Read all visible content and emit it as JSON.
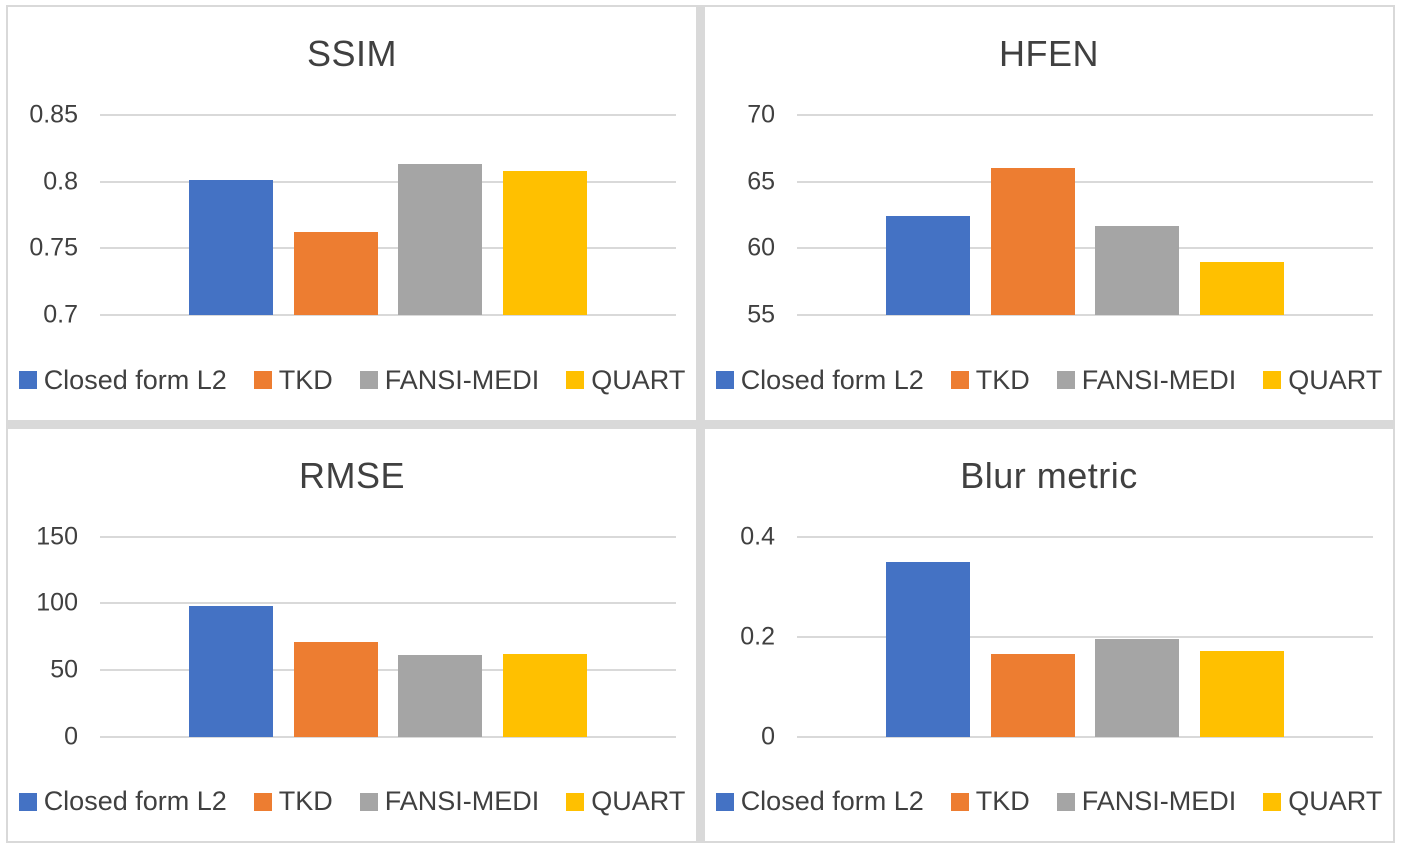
{
  "figure": {
    "layout": "2x2-grid",
    "panel_background": "#ffffff",
    "panel_border_color": "#d9d9d9",
    "gridline_color": "#d9d9d9",
    "text_color": "#404040"
  },
  "legend": {
    "position": "bottom",
    "entries": [
      {
        "label": "Closed form L2",
        "color": "#4472C4"
      },
      {
        "label": "TKD",
        "color": "#ED7D31"
      },
      {
        "label": "FANSI-MEDI",
        "color": "#A5A5A5"
      },
      {
        "label": "QUART",
        "color": "#FFC000"
      }
    ]
  },
  "chart_data": [
    {
      "type": "bar",
      "title": "SSIM",
      "categories": [
        "Closed form L2",
        "TKD",
        "FANSI-MEDI",
        "QUART"
      ],
      "values": [
        0.801,
        0.762,
        0.813,
        0.808
      ],
      "colors": [
        "#4472C4",
        "#ED7D31",
        "#A5A5A5",
        "#FFC000"
      ],
      "yticks": [
        0.7,
        0.75,
        0.8,
        0.85
      ],
      "ytick_labels": [
        "0.7",
        "0.75",
        "0.8",
        "0.85"
      ],
      "ylim": [
        0.7,
        0.85
      ],
      "grid": "horizontal",
      "legend_position": "bottom"
    },
    {
      "type": "bar",
      "title": "HFEN",
      "categories": [
        "Closed form L2",
        "TKD",
        "FANSI-MEDI",
        "QUART"
      ],
      "values": [
        62.4,
        66.0,
        61.7,
        59.0
      ],
      "colors": [
        "#4472C4",
        "#ED7D31",
        "#A5A5A5",
        "#FFC000"
      ],
      "yticks": [
        55,
        60,
        65,
        70
      ],
      "ytick_labels": [
        "55",
        "60",
        "65",
        "70"
      ],
      "ylim": [
        55,
        70
      ],
      "grid": "horizontal",
      "legend_position": "bottom"
    },
    {
      "type": "bar",
      "title": "RMSE",
      "categories": [
        "Closed form L2",
        "TKD",
        "FANSI-MEDI",
        "QUART"
      ],
      "values": [
        98,
        71,
        61,
        62
      ],
      "colors": [
        "#4472C4",
        "#ED7D31",
        "#A5A5A5",
        "#FFC000"
      ],
      "yticks": [
        0,
        50,
        100,
        150
      ],
      "ytick_labels": [
        "0",
        "50",
        "100",
        "150"
      ],
      "ylim": [
        0,
        150
      ],
      "grid": "horizontal",
      "legend_position": "bottom"
    },
    {
      "type": "bar",
      "title": "Blur metric",
      "categories": [
        "Closed form L2",
        "TKD",
        "FANSI-MEDI",
        "QUART"
      ],
      "values": [
        0.35,
        0.165,
        0.195,
        0.172
      ],
      "colors": [
        "#4472C4",
        "#ED7D31",
        "#A5A5A5",
        "#FFC000"
      ],
      "yticks": [
        0,
        0.2,
        0.4
      ],
      "ytick_labels": [
        "0",
        "0.2",
        "0.4"
      ],
      "ylim": [
        0,
        0.4
      ],
      "grid": "horizontal",
      "legend_position": "bottom"
    }
  ]
}
